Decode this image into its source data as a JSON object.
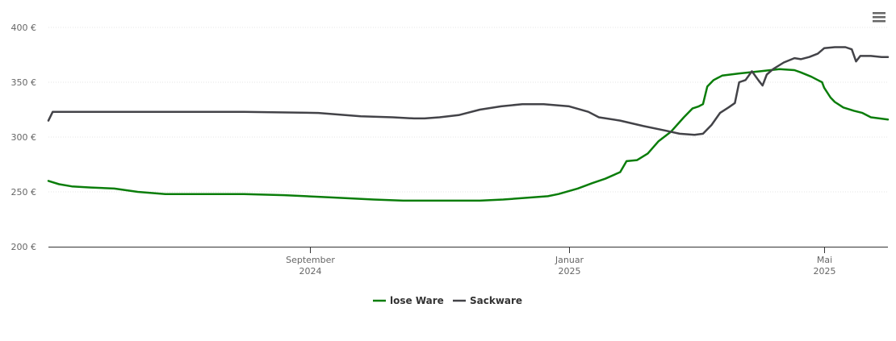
{
  "chart_data": {
    "type": "line",
    "title": "",
    "xlabel": "",
    "ylabel": "",
    "ylim": [
      200,
      400
    ],
    "yticks": [
      {
        "value": 200,
        "label": "200 €"
      },
      {
        "value": 250,
        "label": "250 €"
      },
      {
        "value": 300,
        "label": "300 €"
      },
      {
        "value": 350,
        "label": "350 €"
      },
      {
        "value": 400,
        "label": "400 €"
      }
    ],
    "xlim": [
      "2024-05-01",
      "2025-05-31"
    ],
    "xticks": [
      {
        "date": "2024-09-01",
        "line1": "September",
        "line2": "2024"
      },
      {
        "date": "2025-01-01",
        "line1": "Januar",
        "line2": "2025"
      },
      {
        "date": "2025-05-01",
        "line1": "Mai",
        "line2": "2025"
      }
    ],
    "grid": "horizontal",
    "legend_position": "bottom-center",
    "series": [
      {
        "name": "lose Ware",
        "color": "#0a7d0a",
        "points": [
          [
            "2024-05-01",
            260
          ],
          [
            "2024-05-06",
            257
          ],
          [
            "2024-05-12",
            255
          ],
          [
            "2024-05-21",
            254
          ],
          [
            "2024-06-01",
            253
          ],
          [
            "2024-06-12",
            250
          ],
          [
            "2024-06-25",
            248
          ],
          [
            "2024-07-15",
            248
          ],
          [
            "2024-08-01",
            248
          ],
          [
            "2024-08-20",
            247
          ],
          [
            "2024-09-10",
            245
          ],
          [
            "2024-10-01",
            243
          ],
          [
            "2024-10-15",
            242
          ],
          [
            "2024-11-01",
            242
          ],
          [
            "2024-11-20",
            242
          ],
          [
            "2024-12-01",
            243
          ],
          [
            "2024-12-15",
            245
          ],
          [
            "2024-12-22",
            246
          ],
          [
            "2024-12-27",
            248
          ],
          [
            "2025-01-05",
            253
          ],
          [
            "2025-01-12",
            258
          ],
          [
            "2025-01-18",
            262
          ],
          [
            "2025-01-25",
            268
          ],
          [
            "2025-01-28",
            278
          ],
          [
            "2025-02-02",
            279
          ],
          [
            "2025-02-07",
            285
          ],
          [
            "2025-02-12",
            296
          ],
          [
            "2025-02-18",
            305
          ],
          [
            "2025-02-24",
            318
          ],
          [
            "2025-02-28",
            326
          ],
          [
            "2025-03-03",
            328
          ],
          [
            "2025-03-05",
            330
          ],
          [
            "2025-03-07",
            346
          ],
          [
            "2025-03-10",
            352
          ],
          [
            "2025-03-14",
            356
          ],
          [
            "2025-03-22",
            358
          ],
          [
            "2025-04-01",
            360
          ],
          [
            "2025-04-10",
            362
          ],
          [
            "2025-04-17",
            361
          ],
          [
            "2025-04-20",
            359
          ],
          [
            "2025-04-25",
            355
          ],
          [
            "2025-04-28",
            352
          ],
          [
            "2025-04-30",
            350
          ],
          [
            "2025-05-01",
            345
          ],
          [
            "2025-05-04",
            336
          ],
          [
            "2025-05-06",
            332
          ],
          [
            "2025-05-10",
            327
          ],
          [
            "2025-05-15",
            324
          ],
          [
            "2025-05-19",
            322
          ],
          [
            "2025-05-23",
            318
          ],
          [
            "2025-05-27",
            317
          ],
          [
            "2025-05-31",
            316
          ]
        ]
      },
      {
        "name": "Sackware",
        "color": "#434348",
        "points": [
          [
            "2024-05-01",
            315
          ],
          [
            "2024-05-03",
            323
          ],
          [
            "2024-06-15",
            323
          ],
          [
            "2024-08-01",
            323
          ],
          [
            "2024-09-05",
            322
          ],
          [
            "2024-09-25",
            319
          ],
          [
            "2024-10-10",
            318
          ],
          [
            "2024-10-20",
            317
          ],
          [
            "2024-10-25",
            317
          ],
          [
            "2024-11-01",
            318
          ],
          [
            "2024-11-10",
            320
          ],
          [
            "2024-11-20",
            325
          ],
          [
            "2024-11-30",
            328
          ],
          [
            "2024-12-10",
            330
          ],
          [
            "2024-12-20",
            330
          ],
          [
            "2025-01-01",
            328
          ],
          [
            "2025-01-10",
            323
          ],
          [
            "2025-01-15",
            318
          ],
          [
            "2025-01-25",
            315
          ],
          [
            "2025-02-05",
            310
          ],
          [
            "2025-02-15",
            306
          ],
          [
            "2025-02-22",
            303
          ],
          [
            "2025-03-01",
            302
          ],
          [
            "2025-03-05",
            303
          ],
          [
            "2025-03-09",
            311
          ],
          [
            "2025-03-13",
            322
          ],
          [
            "2025-03-17",
            327
          ],
          [
            "2025-03-20",
            331
          ],
          [
            "2025-03-22",
            350
          ],
          [
            "2025-03-25",
            352
          ],
          [
            "2025-03-28",
            360
          ],
          [
            "2025-03-31",
            352
          ],
          [
            "2025-04-02",
            347
          ],
          [
            "2025-04-04",
            357
          ],
          [
            "2025-04-07",
            362
          ],
          [
            "2025-04-12",
            368
          ],
          [
            "2025-04-17",
            372
          ],
          [
            "2025-04-20",
            371
          ],
          [
            "2025-04-24",
            373
          ],
          [
            "2025-04-28",
            376
          ],
          [
            "2025-05-01",
            381
          ],
          [
            "2025-05-06",
            382
          ],
          [
            "2025-05-11",
            382
          ],
          [
            "2025-05-14",
            380
          ],
          [
            "2025-05-16",
            369
          ],
          [
            "2025-05-18",
            374
          ],
          [
            "2025-05-23",
            374
          ],
          [
            "2025-05-28",
            373
          ],
          [
            "2025-05-31",
            373
          ]
        ]
      }
    ]
  },
  "toolbar": {
    "menu_icon": "hamburger-menu-icon"
  }
}
